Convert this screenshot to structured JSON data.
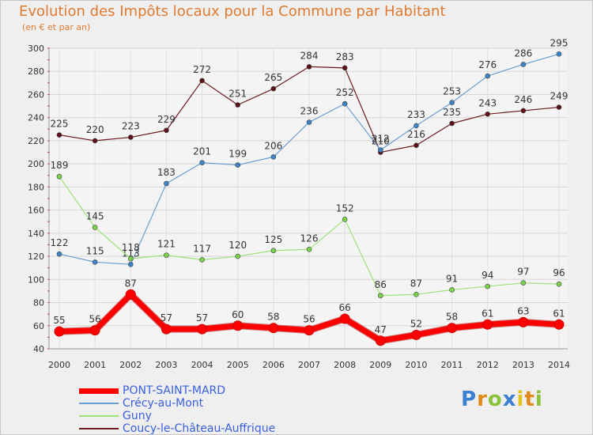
{
  "header": {
    "title": "Evolution des Impôts locaux pour la Commune par Habitant",
    "subtitle": "(en € et par an)"
  },
  "logo": {
    "letters": [
      "P",
      "r",
      "o",
      "x",
      "i",
      "t",
      "i"
    ]
  },
  "chart_data": {
    "type": "line",
    "title": "Evolution des Impôts locaux pour la Commune par Habitant",
    "subtitle": "(en € et par an)",
    "xlabel": "",
    "ylabel": "",
    "ylim": [
      40,
      300
    ],
    "yticks": [
      40,
      60,
      80,
      100,
      120,
      140,
      160,
      180,
      200,
      220,
      240,
      260,
      280,
      300
    ],
    "grid": true,
    "legend_position": "bottom-left",
    "categories": [
      "2000",
      "2001",
      "2002",
      "2003",
      "2004",
      "2005",
      "2006",
      "2007",
      "2008",
      "2009",
      "2010",
      "2011",
      "2012",
      "2013",
      "2014"
    ],
    "series": [
      {
        "name": "Coucy-le-Château-Auffrique",
        "color": "#6b1a1f",
        "marker": "#5a1218",
        "width": 1.2,
        "values": [
          225,
          220,
          223,
          229,
          272,
          251,
          265,
          284,
          283,
          210,
          216,
          235,
          243,
          246,
          249
        ]
      },
      {
        "name": "Crécy-au-Mont",
        "color": "#6a9ed2",
        "marker": "#3d83c8",
        "width": 1.2,
        "values": [
          122,
          115,
          113,
          183,
          201,
          199,
          206,
          236,
          252,
          212,
          233,
          253,
          276,
          286,
          295
        ]
      },
      {
        "name": "Guny",
        "color": "#9ee07a",
        "marker": "#7bd24c",
        "width": 1.2,
        "values": [
          189,
          145,
          118,
          121,
          117,
          120,
          125,
          126,
          152,
          86,
          87,
          91,
          94,
          97,
          96
        ]
      },
      {
        "name": "PONT-SAINT-MARD",
        "color": "#ff0000",
        "marker": "#ff0000",
        "width": 7,
        "values": [
          55,
          56,
          87,
          57,
          57,
          60,
          58,
          56,
          66,
          47,
          52,
          58,
          61,
          63,
          61
        ]
      }
    ],
    "legend": [
      "PONT-SAINT-MARD",
      "Crécy-au-Mont",
      "Guny",
      "Coucy-le-Château-Auffrique"
    ]
  }
}
